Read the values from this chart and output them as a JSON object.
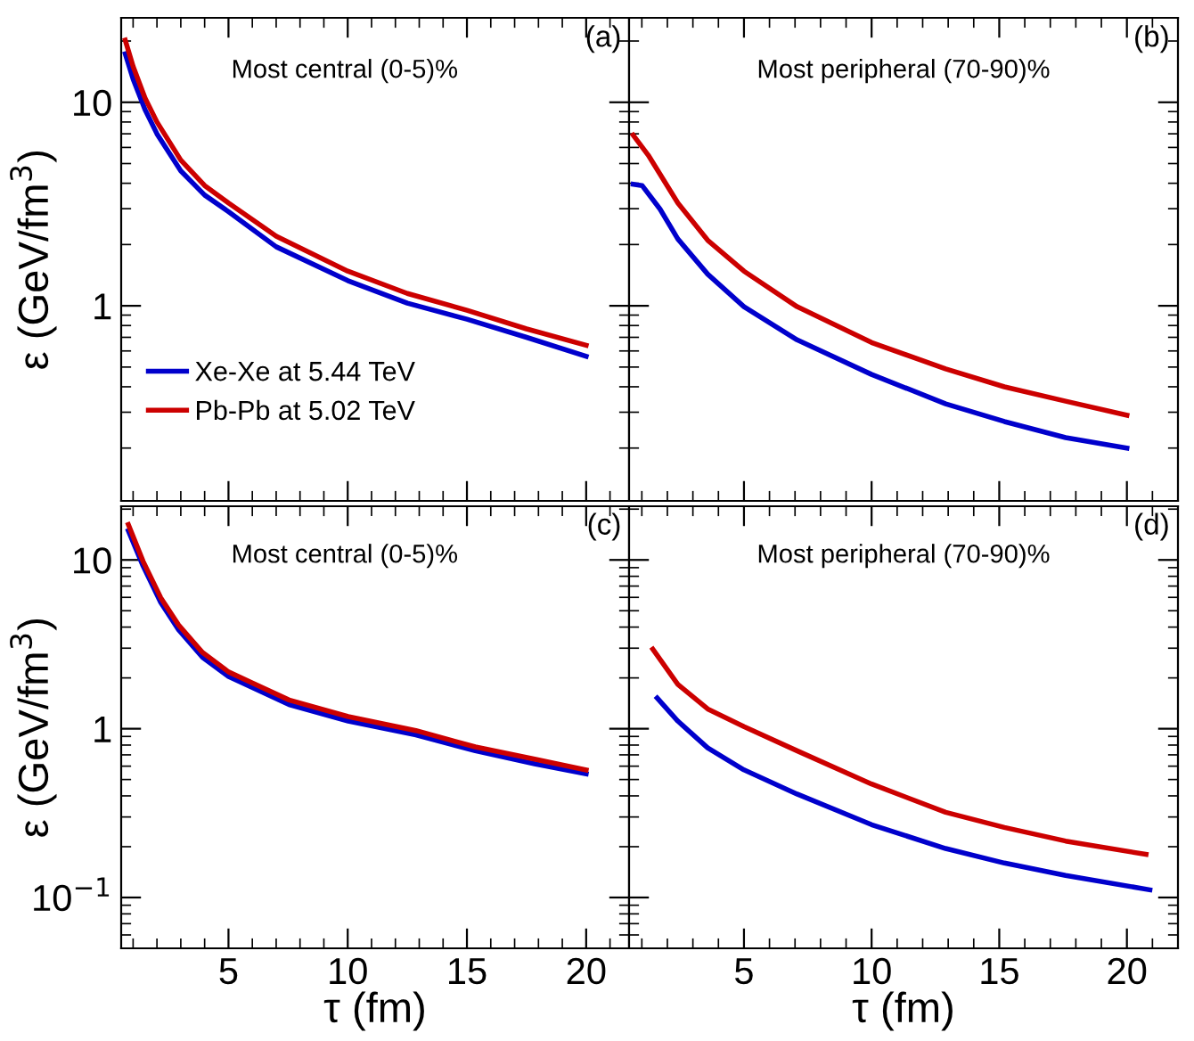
{
  "chart_data": [
    {
      "type": "line",
      "ylabel": "ε (GeV/fm$^{3}$)",
      "annotations": [
        "(a)",
        "Most central (0-5)%"
      ],
      "log": "y",
      "xlim": [
        0.5,
        21.8
      ],
      "ylim": [
        0.11,
        26
      ],
      "xticks": [
        5,
        10,
        15,
        20
      ],
      "yticks": [
        1,
        10
      ],
      "tick_labels": "y",
      "legend": "bottom left",
      "grid": false,
      "line_style": "solid",
      "marker": "none",
      "series": [
        {
          "name": "Xe-Xe at 5.44 TeV",
          "color": "#0000cc",
          "x": [
            0.67,
            1,
            1.5,
            2,
            3,
            4,
            5,
            7,
            10,
            12.5,
            15,
            17.5,
            20
          ],
          "values": [
            17.3,
            13,
            9.2,
            7,
            4.6,
            3.5,
            2.9,
            1.95,
            1.33,
            1.03,
            0.86,
            0.7,
            0.565
          ]
        },
        {
          "name": "Pb-Pb at 5.02 TeV",
          "color": "#cc0000",
          "x": [
            0.67,
            1,
            1.5,
            2,
            3,
            4,
            5,
            7,
            10,
            12.5,
            15,
            17.5,
            20
          ],
          "values": [
            20.2,
            15,
            10.5,
            8,
            5.2,
            3.9,
            3.2,
            2.2,
            1.48,
            1.15,
            0.95,
            0.77,
            0.64
          ]
        }
      ]
    },
    {
      "type": "line",
      "annotations": [
        "(b)",
        "Most peripheral (70-90)%"
      ],
      "log": "y",
      "xlim": [
        0.5,
        22
      ],
      "ylim": [
        0.11,
        26
      ],
      "xticks": [
        5,
        10,
        15,
        20
      ],
      "yticks": [
        1,
        10
      ],
      "tick_labels": false,
      "grid": false,
      "line_style": "solid",
      "marker": "none",
      "series": [
        {
          "color": "#0000cc",
          "x": [
            0.66,
            1.01,
            1.71,
            2.41,
            3.58,
            5,
            7.08,
            10,
            12.9,
            15.2,
            17.6,
            20
          ],
          "values": [
            3.96,
            3.9,
            2.99,
            2.13,
            1.43,
            0.99,
            0.68,
            0.46,
            0.33,
            0.27,
            0.225,
            0.2
          ]
        },
        {
          "color": "#cc0000",
          "x": [
            0.66,
            1.25,
            2.41,
            3.58,
            5,
            7.08,
            10,
            12.9,
            15.2,
            17.6,
            20
          ],
          "values": [
            6.9,
            5.5,
            3.2,
            2.1,
            1.48,
            0.99,
            0.66,
            0.49,
            0.4,
            0.34,
            0.29
          ]
        }
      ]
    },
    {
      "type": "line",
      "xlabel": "τ (fm)",
      "ylabel": "ε (GeV/fm$^{3}$)",
      "annotations": [
        "(c)",
        "Most central (0-5)%"
      ],
      "log": "y",
      "xlim": [
        0.5,
        21.8
      ],
      "ylim": [
        0.05,
        20.8
      ],
      "xticks": [
        5,
        10,
        15,
        20
      ],
      "yticks": [
        {
          "value": 0.1,
          "label": "10$^{−1}$"
        },
        1,
        10
      ],
      "grid": false,
      "line_style": "solid",
      "marker": "none",
      "series": [
        {
          "color": "#0000cc",
          "x": [
            0.8,
            1.42,
            2.16,
            2.91,
            3.91,
            5,
            7.54,
            10.02,
            12.86,
            15.35,
            17.84,
            20
          ],
          "values": [
            14.9,
            9.2,
            5.6,
            3.85,
            2.65,
            2.04,
            1.39,
            1.11,
            0.92,
            0.74,
            0.62,
            0.54
          ]
        },
        {
          "color": "#cc0000",
          "x": [
            0.8,
            1.42,
            2.16,
            2.91,
            3.91,
            5,
            7.54,
            10.02,
            12.86,
            15.35,
            17.84,
            20
          ],
          "values": [
            16.2,
            9.8,
            5.97,
            4.11,
            2.83,
            2.17,
            1.48,
            1.18,
            0.975,
            0.78,
            0.66,
            0.57
          ]
        }
      ]
    },
    {
      "type": "line",
      "xlabel": "τ (fm)",
      "annotations": [
        "(d)",
        "Most peripheral (70-90)%"
      ],
      "log": "y",
      "xlim": [
        0.5,
        22
      ],
      "ylim": [
        0.05,
        20.8
      ],
      "xticks": [
        5,
        10,
        15,
        20
      ],
      "yticks": [
        {
          "value": 0.1,
          "label": null
        },
        {
          "value": 1,
          "label": null
        },
        {
          "value": 10,
          "label": null
        }
      ],
      "tick_labels": "x",
      "grid": false,
      "line_style": "solid",
      "marker": "none",
      "series": [
        {
          "color": "#0000cc",
          "x": [
            1.6,
            2.41,
            3.58,
            5,
            7.08,
            10,
            12.9,
            15.2,
            17.6,
            20.9
          ],
          "values": [
            1.52,
            1.11,
            0.77,
            0.57,
            0.41,
            0.27,
            0.195,
            0.16,
            0.135,
            0.111
          ]
        },
        {
          "color": "#cc0000",
          "x": [
            1.43,
            2.41,
            3.58,
            5,
            7.08,
            10,
            12.9,
            15.2,
            17.6,
            20.75
          ],
          "values": [
            2.96,
            1.83,
            1.31,
            1.03,
            0.74,
            0.47,
            0.32,
            0.26,
            0.216,
            0.18
          ]
        }
      ]
    }
  ]
}
